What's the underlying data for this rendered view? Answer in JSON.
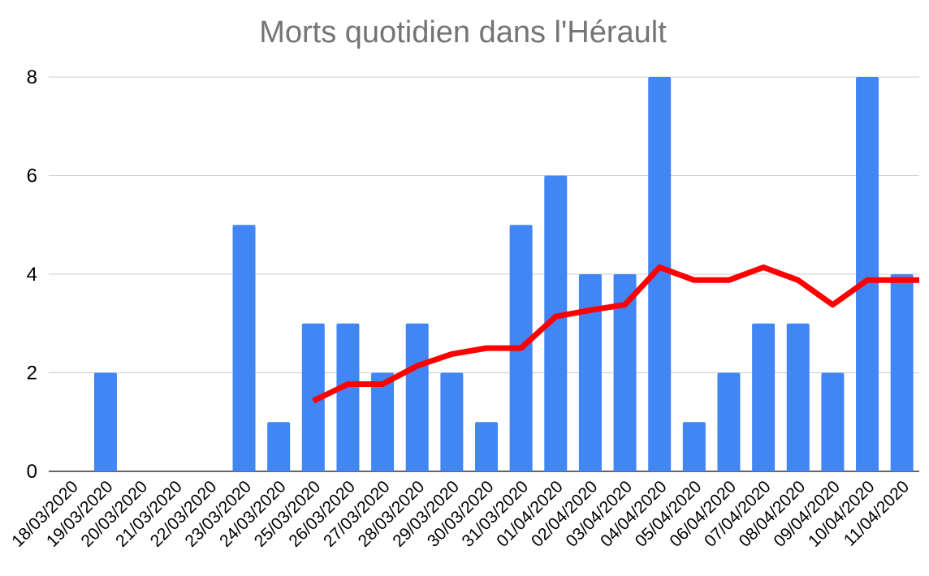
{
  "chart_data": {
    "type": "bar",
    "title": "Morts quotidien dans l'Hérault",
    "xlabel": "",
    "ylabel": "",
    "ylim": [
      0,
      8
    ],
    "yticks": [
      "0",
      "2",
      "4",
      "6",
      "8"
    ],
    "grid": true,
    "legend": "none",
    "categories": [
      "18/03/2020",
      "19/03/2020",
      "20/03/2020",
      "21/03/2020",
      "22/03/2020",
      "23/03/2020",
      "24/03/2020",
      "25/03/2020",
      "26/03/2020",
      "27/03/2020",
      "28/03/2020",
      "29/03/2020",
      "30/03/2020",
      "31/03/2020",
      "01/04/2020",
      "02/04/2020",
      "03/04/2020",
      "04/04/2020",
      "05/04/2020",
      "06/04/2020",
      "07/04/2020",
      "08/04/2020",
      "09/04/2020",
      "10/04/2020",
      "11/04/2020"
    ],
    "series": [
      {
        "type": "bar",
        "color": "#4285F4",
        "values": [
          0,
          2,
          0,
          0,
          0,
          5,
          1,
          3,
          3,
          2,
          3,
          2,
          1,
          5,
          6,
          4,
          4,
          8,
          1,
          2,
          3,
          3,
          2,
          8,
          4
        ]
      },
      {
        "type": "line",
        "color": "#FF0000",
        "values": [
          null,
          null,
          null,
          null,
          null,
          null,
          null,
          1.43,
          1.77,
          1.77,
          2.14,
          2.38,
          2.5,
          2.5,
          3.14,
          3.27,
          3.38,
          4.14,
          3.88,
          3.88,
          4.14,
          3.88,
          3.38,
          3.88,
          3.88
        ]
      }
    ]
  }
}
